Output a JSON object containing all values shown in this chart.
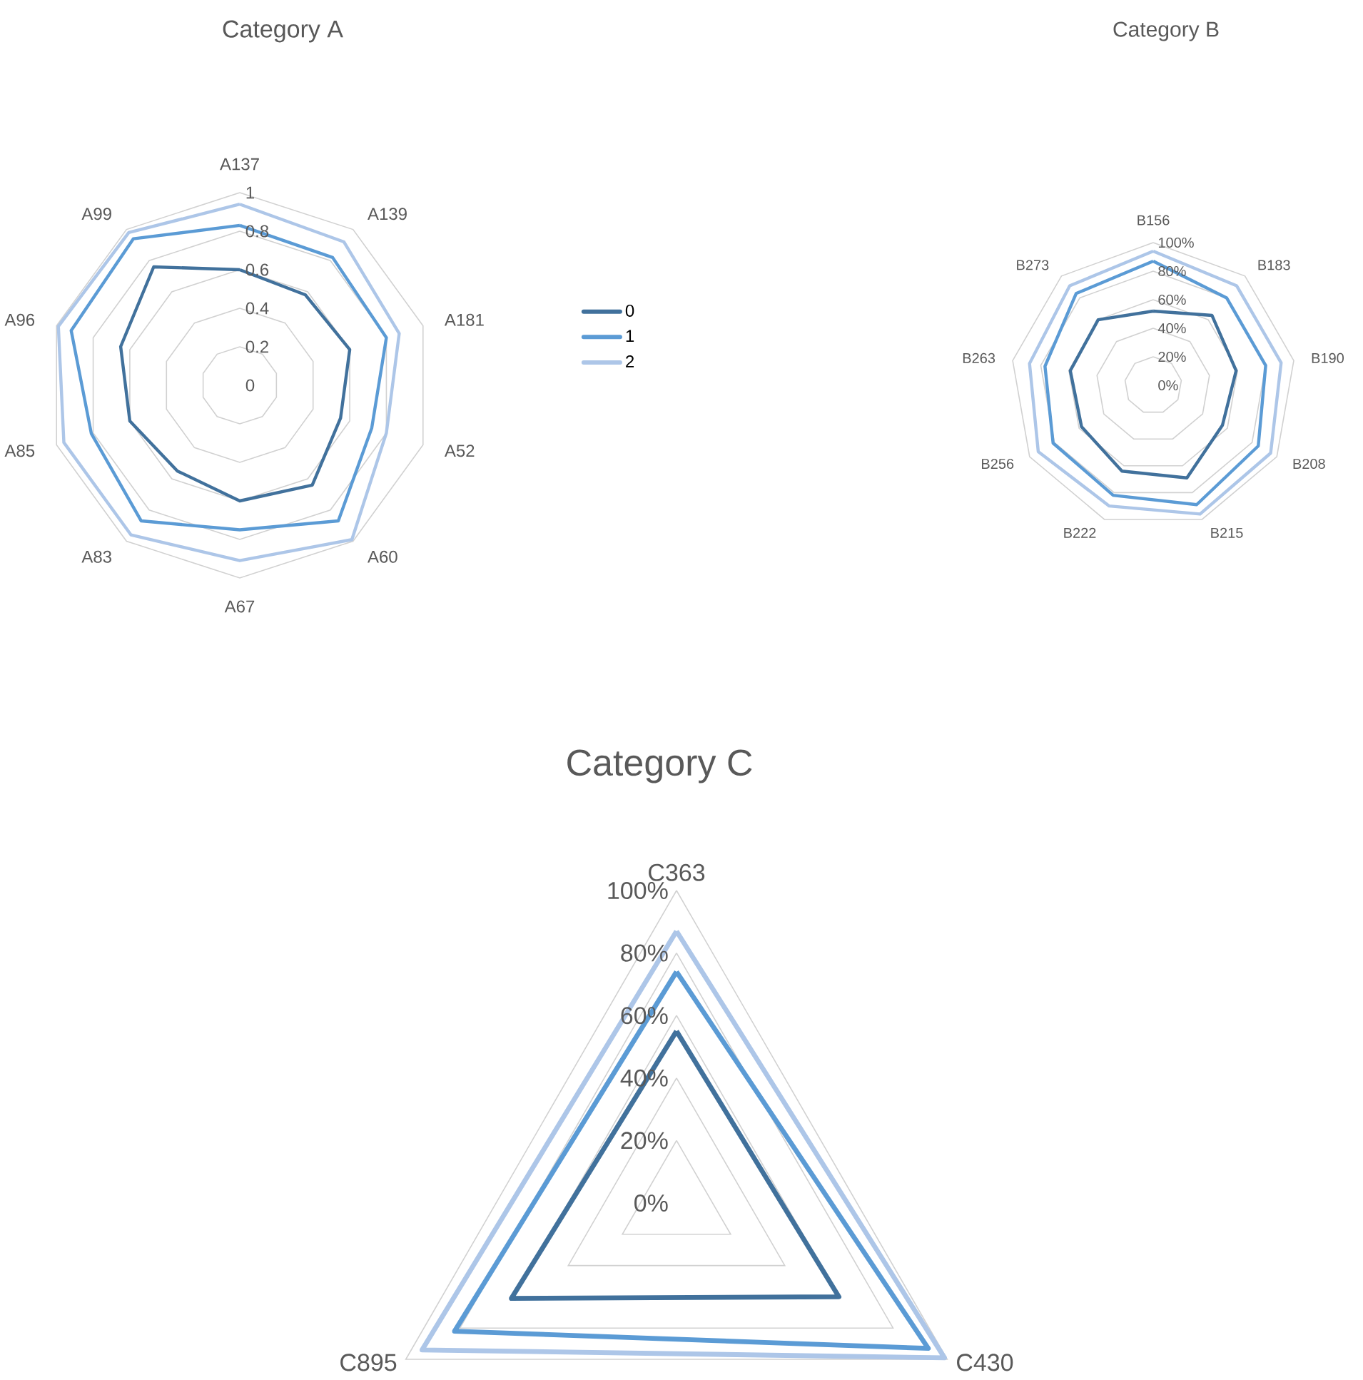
{
  "chart_data": [
    {
      "type": "radar",
      "title": "Category A",
      "categories": [
        "A137",
        "A139",
        "A181",
        "A52",
        "A60",
        "A67",
        "A83",
        "A85",
        "A96",
        "A99"
      ],
      "series": [
        {
          "name": "0",
          "color": "#41719c",
          "values": [
            0.6,
            0.58,
            0.6,
            0.55,
            0.64,
            0.6,
            0.55,
            0.6,
            0.65,
            0.76
          ]
        },
        {
          "name": "1",
          "color": "#5b9bd5",
          "values": [
            0.83,
            0.82,
            0.8,
            0.72,
            0.87,
            0.75,
            0.87,
            0.81,
            0.92,
            0.94
          ]
        },
        {
          "name": "2",
          "color": "#adc6e8",
          "values": [
            0.94,
            0.92,
            0.87,
            0.8,
            0.99,
            0.91,
            0.96,
            0.96,
            0.99,
            0.98
          ]
        }
      ],
      "ylim": [
        0,
        1
      ],
      "yticks": [
        {
          "value": 0,
          "label": "0"
        },
        {
          "value": 0.2,
          "label": "0.2"
        },
        {
          "value": 0.4,
          "label": "0.4"
        },
        {
          "value": 0.6,
          "label": "0.6"
        },
        {
          "value": 0.8,
          "label": "0.8"
        },
        {
          "value": 1,
          "label": "1"
        }
      ],
      "grid": true,
      "legend": "right"
    },
    {
      "type": "radar",
      "title": "Category B",
      "categories": [
        "B156",
        "B183",
        "B190",
        "B208",
        "B215",
        "B222",
        "B256",
        "B263",
        "B273"
      ],
      "series": [
        {
          "color": "#41719c",
          "values": [
            0.52,
            0.64,
            0.59,
            0.56,
            0.69,
            0.64,
            0.58,
            0.59,
            0.6
          ]
        },
        {
          "color": "#5b9bd5",
          "values": [
            0.87,
            0.8,
            0.8,
            0.85,
            0.89,
            0.82,
            0.81,
            0.77,
            0.84
          ]
        },
        {
          "color": "#adc6e8",
          "values": [
            0.94,
            0.91,
            0.91,
            0.95,
            0.96,
            0.9,
            0.93,
            0.88,
            0.91
          ]
        }
      ],
      "ylim": [
        0,
        1
      ],
      "yticks": [
        {
          "value": 0,
          "label": "0%"
        },
        {
          "value": 0.2,
          "label": "20%"
        },
        {
          "value": 0.4,
          "label": "40%"
        },
        {
          "value": 0.6,
          "label": "60%"
        },
        {
          "value": 0.8,
          "label": "80%"
        },
        {
          "value": 1,
          "label": "100%"
        }
      ],
      "grid": true
    },
    {
      "type": "radar",
      "title": "Category C",
      "categories": [
        "C363",
        "C430",
        "C895"
      ],
      "series": [
        {
          "color": "#41719c",
          "values": [
            0.55,
            0.6,
            0.61
          ]
        },
        {
          "color": "#5b9bd5",
          "values": [
            0.74,
            0.93,
            0.82
          ]
        },
        {
          "color": "#adc6e8",
          "values": [
            0.87,
            0.99,
            0.94
          ]
        }
      ],
      "ylim": [
        0,
        1
      ],
      "yticks": [
        {
          "value": 0,
          "label": "0%"
        },
        {
          "value": 0.2,
          "label": "20%"
        },
        {
          "value": 0.4,
          "label": "40%"
        },
        {
          "value": 0.6,
          "label": "60%"
        },
        {
          "value": 0.8,
          "label": "80%"
        },
        {
          "value": 1,
          "label": "100%"
        }
      ],
      "grid": true
    }
  ]
}
